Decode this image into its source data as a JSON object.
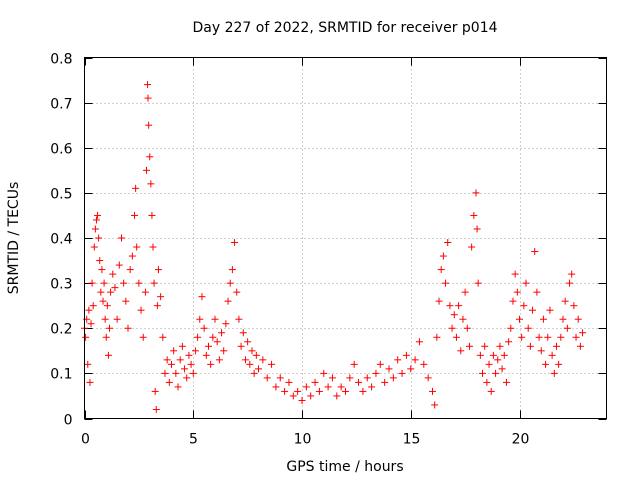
{
  "chart_data": {
    "type": "scatter",
    "title": "Day 227 of 2022, SRMTID for receiver p014",
    "xlabel": "GPS time / hours",
    "ylabel": "SRMTID / TECUs",
    "xlim": [
      0,
      24
    ],
    "ylim": [
      0,
      0.8
    ],
    "xticks": [
      0,
      5,
      10,
      15,
      20
    ],
    "xtick_labels": [
      "0",
      "5",
      "10",
      "15",
      "20"
    ],
    "yticks": [
      0,
      0.1,
      0.2,
      0.3,
      0.4,
      0.5,
      0.6,
      0.7,
      0.8
    ],
    "ytick_labels": [
      "0",
      "0.1",
      "0.2",
      "0.3",
      "0.4",
      "0.5",
      "0.6",
      "0.7",
      "0.8"
    ],
    "grid": true,
    "marker": "+",
    "marker_color": "#ff0000",
    "series": [
      {
        "name": "SRMTID",
        "points": [
          [
            0.0,
            0.2
          ],
          [
            0.05,
            0.18
          ],
          [
            0.1,
            0.22
          ],
          [
            0.15,
            0.12
          ],
          [
            0.2,
            0.24
          ],
          [
            0.25,
            0.08
          ],
          [
            0.3,
            0.21
          ],
          [
            0.35,
            0.3
          ],
          [
            0.4,
            0.25
          ],
          [
            0.45,
            0.38
          ],
          [
            0.5,
            0.42
          ],
          [
            0.55,
            0.44
          ],
          [
            0.6,
            0.45
          ],
          [
            0.65,
            0.4
          ],
          [
            0.7,
            0.35
          ],
          [
            0.75,
            0.28
          ],
          [
            0.8,
            0.33
          ],
          [
            0.85,
            0.26
          ],
          [
            0.9,
            0.3
          ],
          [
            0.95,
            0.22
          ],
          [
            1.0,
            0.18
          ],
          [
            1.05,
            0.25
          ],
          [
            1.1,
            0.14
          ],
          [
            1.15,
            0.2
          ],
          [
            1.2,
            0.28
          ],
          [
            1.3,
            0.32
          ],
          [
            1.4,
            0.29
          ],
          [
            1.5,
            0.22
          ],
          [
            1.6,
            0.34
          ],
          [
            1.7,
            0.4
          ],
          [
            1.8,
            0.3
          ],
          [
            1.9,
            0.26
          ],
          [
            2.0,
            0.2
          ],
          [
            2.1,
            0.33
          ],
          [
            2.2,
            0.36
          ],
          [
            2.3,
            0.45
          ],
          [
            2.35,
            0.51
          ],
          [
            2.4,
            0.38
          ],
          [
            2.5,
            0.3
          ],
          [
            2.6,
            0.24
          ],
          [
            2.7,
            0.18
          ],
          [
            2.8,
            0.28
          ],
          [
            2.85,
            0.55
          ],
          [
            2.9,
            0.74
          ],
          [
            2.92,
            0.71
          ],
          [
            2.95,
            0.65
          ],
          [
            3.0,
            0.58
          ],
          [
            3.05,
            0.52
          ],
          [
            3.1,
            0.45
          ],
          [
            3.15,
            0.38
          ],
          [
            3.2,
            0.3
          ],
          [
            3.25,
            0.06
          ],
          [
            3.3,
            0.02
          ],
          [
            3.35,
            0.25
          ],
          [
            3.4,
            0.33
          ],
          [
            3.5,
            0.27
          ],
          [
            3.6,
            0.18
          ],
          [
            3.7,
            0.1
          ],
          [
            3.8,
            0.13
          ],
          [
            3.9,
            0.08
          ],
          [
            4.0,
            0.12
          ],
          [
            4.1,
            0.15
          ],
          [
            4.2,
            0.1
          ],
          [
            4.3,
            0.07
          ],
          [
            4.4,
            0.13
          ],
          [
            4.5,
            0.16
          ],
          [
            4.6,
            0.11
          ],
          [
            4.7,
            0.09
          ],
          [
            4.8,
            0.14
          ],
          [
            4.9,
            0.12
          ],
          [
            5.0,
            0.1
          ],
          [
            5.1,
            0.15
          ],
          [
            5.2,
            0.18
          ],
          [
            5.3,
            0.22
          ],
          [
            5.4,
            0.27
          ],
          [
            5.5,
            0.2
          ],
          [
            5.6,
            0.14
          ],
          [
            5.7,
            0.16
          ],
          [
            5.8,
            0.12
          ],
          [
            5.9,
            0.18
          ],
          [
            6.0,
            0.22
          ],
          [
            6.1,
            0.17
          ],
          [
            6.2,
            0.13
          ],
          [
            6.3,
            0.19
          ],
          [
            6.4,
            0.15
          ],
          [
            6.5,
            0.21
          ],
          [
            6.6,
            0.26
          ],
          [
            6.7,
            0.3
          ],
          [
            6.8,
            0.33
          ],
          [
            6.9,
            0.39
          ],
          [
            7.0,
            0.28
          ],
          [
            7.1,
            0.22
          ],
          [
            7.2,
            0.16
          ],
          [
            7.3,
            0.19
          ],
          [
            7.4,
            0.13
          ],
          [
            7.5,
            0.17
          ],
          [
            7.6,
            0.12
          ],
          [
            7.7,
            0.15
          ],
          [
            7.8,
            0.1
          ],
          [
            7.9,
            0.14
          ],
          [
            8.0,
            0.11
          ],
          [
            8.2,
            0.13
          ],
          [
            8.4,
            0.09
          ],
          [
            8.6,
            0.12
          ],
          [
            8.8,
            0.07
          ],
          [
            9.0,
            0.09
          ],
          [
            9.2,
            0.06
          ],
          [
            9.4,
            0.08
          ],
          [
            9.6,
            0.05
          ],
          [
            9.8,
            0.06
          ],
          [
            10.0,
            0.04
          ],
          [
            10.2,
            0.07
          ],
          [
            10.4,
            0.05
          ],
          [
            10.6,
            0.08
          ],
          [
            10.8,
            0.06
          ],
          [
            11.0,
            0.1
          ],
          [
            11.2,
            0.07
          ],
          [
            11.4,
            0.09
          ],
          [
            11.6,
            0.05
          ],
          [
            11.8,
            0.07
          ],
          [
            12.0,
            0.06
          ],
          [
            12.2,
            0.09
          ],
          [
            12.4,
            0.12
          ],
          [
            12.6,
            0.08
          ],
          [
            12.8,
            0.06
          ],
          [
            13.0,
            0.09
          ],
          [
            13.2,
            0.07
          ],
          [
            13.4,
            0.1
          ],
          [
            13.6,
            0.12
          ],
          [
            13.8,
            0.08
          ],
          [
            14.0,
            0.11
          ],
          [
            14.2,
            0.09
          ],
          [
            14.4,
            0.13
          ],
          [
            14.6,
            0.1
          ],
          [
            14.8,
            0.14
          ],
          [
            15.0,
            0.11
          ],
          [
            15.2,
            0.13
          ],
          [
            15.4,
            0.17
          ],
          [
            15.6,
            0.12
          ],
          [
            15.8,
            0.09
          ],
          [
            16.0,
            0.06
          ],
          [
            16.1,
            0.03
          ],
          [
            16.2,
            0.18
          ],
          [
            16.3,
            0.26
          ],
          [
            16.4,
            0.33
          ],
          [
            16.5,
            0.36
          ],
          [
            16.6,
            0.3
          ],
          [
            16.7,
            0.39
          ],
          [
            16.8,
            0.25
          ],
          [
            16.9,
            0.2
          ],
          [
            17.0,
            0.23
          ],
          [
            17.1,
            0.18
          ],
          [
            17.2,
            0.25
          ],
          [
            17.3,
            0.15
          ],
          [
            17.4,
            0.22
          ],
          [
            17.5,
            0.28
          ],
          [
            17.6,
            0.2
          ],
          [
            17.7,
            0.16
          ],
          [
            17.8,
            0.38
          ],
          [
            17.9,
            0.45
          ],
          [
            18.0,
            0.5
          ],
          [
            18.05,
            0.42
          ],
          [
            18.1,
            0.3
          ],
          [
            18.2,
            0.14
          ],
          [
            18.3,
            0.1
          ],
          [
            18.4,
            0.16
          ],
          [
            18.5,
            0.08
          ],
          [
            18.6,
            0.12
          ],
          [
            18.7,
            0.06
          ],
          [
            18.8,
            0.14
          ],
          [
            18.9,
            0.1
          ],
          [
            19.0,
            0.13
          ],
          [
            19.1,
            0.16
          ],
          [
            19.2,
            0.11
          ],
          [
            19.3,
            0.14
          ],
          [
            19.4,
            0.08
          ],
          [
            19.5,
            0.17
          ],
          [
            19.6,
            0.2
          ],
          [
            19.7,
            0.26
          ],
          [
            19.8,
            0.32
          ],
          [
            19.9,
            0.28
          ],
          [
            20.0,
            0.22
          ],
          [
            20.1,
            0.18
          ],
          [
            20.2,
            0.25
          ],
          [
            20.3,
            0.3
          ],
          [
            20.4,
            0.2
          ],
          [
            20.5,
            0.16
          ],
          [
            20.6,
            0.24
          ],
          [
            20.7,
            0.37
          ],
          [
            20.8,
            0.28
          ],
          [
            20.9,
            0.18
          ],
          [
            21.0,
            0.15
          ],
          [
            21.1,
            0.22
          ],
          [
            21.2,
            0.12
          ],
          [
            21.3,
            0.18
          ],
          [
            21.4,
            0.24
          ],
          [
            21.5,
            0.14
          ],
          [
            21.6,
            0.1
          ],
          [
            21.7,
            0.16
          ],
          [
            21.8,
            0.12
          ],
          [
            21.9,
            0.18
          ],
          [
            22.0,
            0.22
          ],
          [
            22.1,
            0.26
          ],
          [
            22.2,
            0.2
          ],
          [
            22.3,
            0.3
          ],
          [
            22.4,
            0.32
          ],
          [
            22.5,
            0.25
          ],
          [
            22.6,
            0.18
          ],
          [
            22.7,
            0.22
          ],
          [
            22.8,
            0.16
          ],
          [
            22.9,
            0.19
          ]
        ]
      }
    ]
  }
}
